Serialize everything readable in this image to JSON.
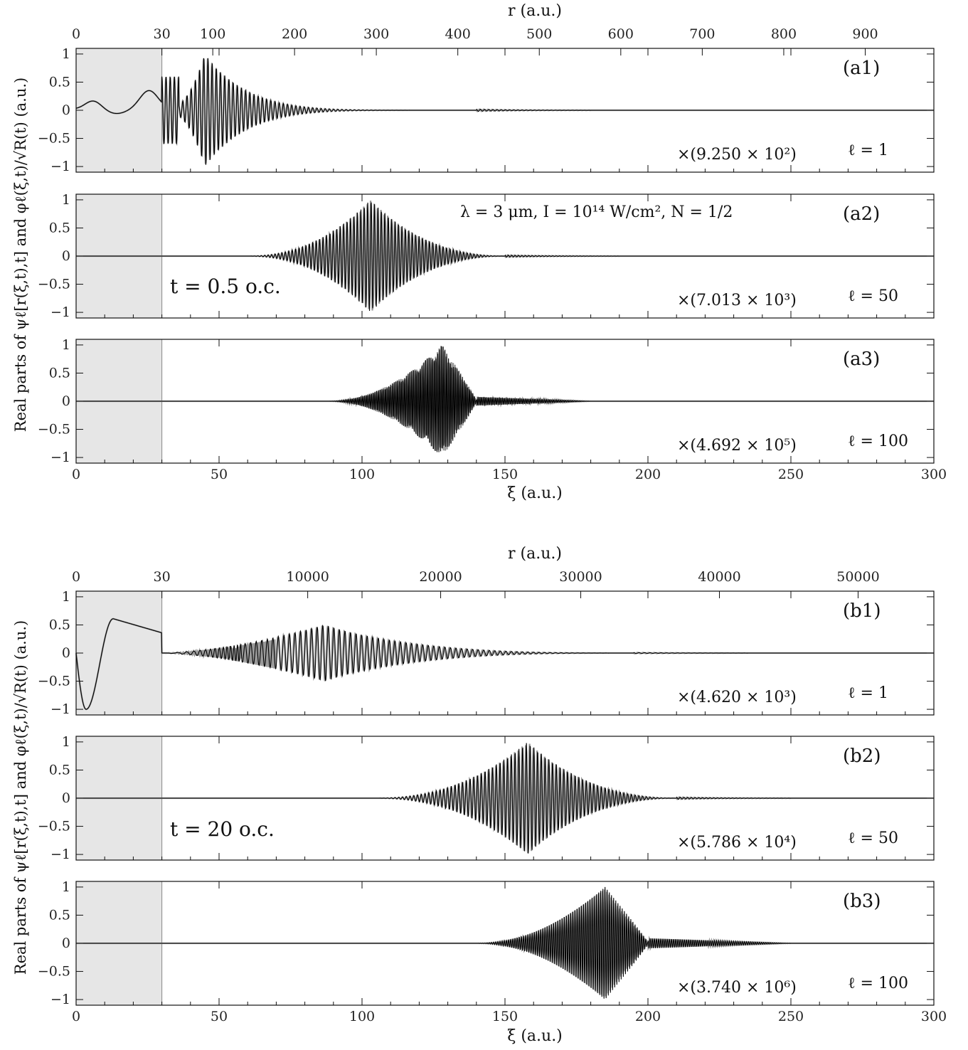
{
  "figure": {
    "y_axis_label": "Real parts of ψℓ[r(ξ,t),t] and φℓ(ξ,t)/√R(t) (a.u.)",
    "x_axis_label": "ξ (a.u.)",
    "top_axis_label": "r (a.u.)",
    "shade_color": "#e6e6e6",
    "color_psi": "#999999",
    "color_phi": "#000000"
  },
  "chart_data": [
    {
      "id": "a",
      "type": "line",
      "time_label": "t = 0.5 o.c.",
      "annotation": "λ = 3 μm, I = 10¹⁴ W/cm², N = 1/2",
      "xlabel": "ξ (a.u.)",
      "xlim": [
        0,
        300
      ],
      "x_ticks": [
        "0",
        "50",
        "100",
        "150",
        "200",
        "250",
        "300"
      ],
      "x_tick_values": [
        0,
        50,
        100,
        150,
        200,
        250,
        300
      ],
      "top_axis": {
        "label": "r (a.u.)",
        "ticks": [
          {
            "xi": 0,
            "label": "0"
          },
          {
            "xi": 30,
            "label": "30"
          },
          {
            "xi": 47.8,
            "label": "100"
          },
          {
            "xi": 76.4,
            "label": "200"
          },
          {
            "xi": 105,
            "label": "300"
          },
          {
            "xi": 133.5,
            "label": "400"
          },
          {
            "xi": 162,
            "label": "500"
          },
          {
            "xi": 190.5,
            "label": "600"
          },
          {
            "xi": 219,
            "label": "700"
          },
          {
            "xi": 247.5,
            "label": "800"
          },
          {
            "xi": 276,
            "label": "900"
          }
        ]
      },
      "shaded_region": [
        0,
        30
      ],
      "y_ticks": [
        "1",
        "0.5",
        "0",
        "−0.5",
        "−1"
      ],
      "y_tick_values": [
        1,
        0.5,
        0,
        -0.5,
        -1
      ],
      "ylim": [
        -1.1,
        1.1
      ],
      "panels": [
        {
          "label": "(a1)",
          "scale": "×(9.250 × 10²)",
          "ell": "ℓ = 1",
          "inner": {
            "type": "twohump",
            "peaks": [
              [
                7,
                0.15
              ],
              [
                25,
                0.33
              ]
            ],
            "trough": [
              14,
              -0.07
            ]
          },
          "packet": {
            "start": 30,
            "peak": 45,
            "end": 140,
            "amplitude": 1.0,
            "cycles": 75,
            "rise": 2.5,
            "fall": 6
          }
        },
        {
          "label": "(a2)",
          "scale": "×(7.013 × 10³)",
          "ell": "ℓ = 50",
          "inner": {
            "type": "flat"
          },
          "packet": {
            "start": 60,
            "peak": 103,
            "end": 150,
            "amplitude": 1.0,
            "cycles": 75,
            "rise": 2.2,
            "fall": 2.2
          }
        },
        {
          "label": "(a3)",
          "scale": "×(4.692 × 10⁵)",
          "ell": "ℓ = 100",
          "inner": {
            "type": "flat"
          },
          "packet": {
            "start": 88,
            "peak": 128,
            "end": 140,
            "amplitude": 1.0,
            "cycles": 85,
            "rise": 2.0,
            "fall": 0.9,
            "tail_end": 180,
            "tail_amp": 0.08
          }
        }
      ]
    },
    {
      "id": "b",
      "type": "line",
      "time_label": "t = 20 o.c.",
      "xlabel": "ξ (a.u.)",
      "xlim": [
        0,
        300
      ],
      "x_ticks": [
        "0",
        "50",
        "100",
        "150",
        "200",
        "250",
        "300"
      ],
      "x_tick_values": [
        0,
        50,
        100,
        150,
        200,
        250,
        300
      ],
      "top_axis": {
        "label": "r (a.u.)",
        "ticks": [
          {
            "xi": 0,
            "label": "0"
          },
          {
            "xi": 30,
            "label": "30"
          },
          {
            "xi": 81,
            "label": "10000"
          },
          {
            "xi": 127.5,
            "label": "20000"
          },
          {
            "xi": 176.5,
            "label": "30000"
          },
          {
            "xi": 225,
            "label": "40000"
          },
          {
            "xi": 273.5,
            "label": "50000"
          }
        ]
      },
      "shaded_region": [
        0,
        30
      ],
      "y_ticks": [
        "1",
        "0.5",
        "0",
        "−0.5",
        "−1"
      ],
      "y_tick_values": [
        1,
        0.5,
        0,
        -0.5,
        -1
      ],
      "ylim": [
        -1.1,
        1.1
      ],
      "panels": [
        {
          "label": "(b1)",
          "scale": "×(4.620 × 10³)",
          "ell": "ℓ = 1",
          "inner": {
            "type": "dip",
            "min": [
              3.5,
              -1.0
            ],
            "max": [
              13,
              0.61
            ],
            "end": [
              30,
              0.36
            ]
          },
          "packet": {
            "start": 30,
            "peak": 87,
            "end": 195,
            "amplitude": 0.5,
            "cycles": 85,
            "rise": 1.6,
            "fall": 3,
            "chirp": true
          }
        },
        {
          "label": "(b2)",
          "scale": "×(5.786 × 10⁴)",
          "ell": "ℓ = 50",
          "inner": {
            "type": "flat"
          },
          "packet": {
            "start": 105,
            "peak": 158,
            "end": 210,
            "amplitude": 1.0,
            "cycles": 80,
            "rise": 2.2,
            "fall": 2.2
          }
        },
        {
          "label": "(b3)",
          "scale": "×(3.740 × 10⁶)",
          "ell": "ℓ = 100",
          "inner": {
            "type": "flat"
          },
          "packet": {
            "start": 140,
            "peak": 185,
            "end": 200,
            "amplitude": 1.0,
            "cycles": 80,
            "rise": 2.0,
            "fall": 0.9,
            "tail_end": 250,
            "tail_amp": 0.09
          }
        }
      ]
    }
  ]
}
